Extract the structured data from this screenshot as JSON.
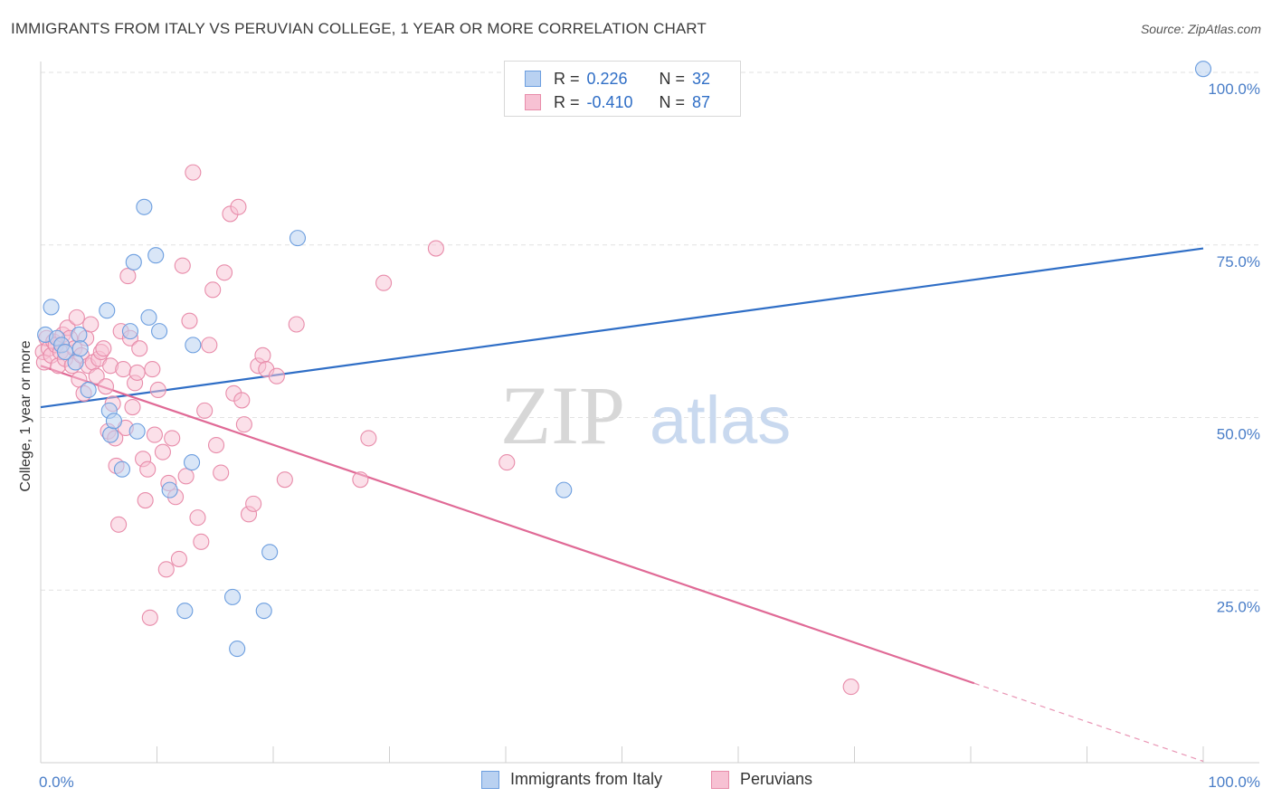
{
  "header": {
    "title": "IMMIGRANTS FROM ITALY VS PERUVIAN COLLEGE, 1 YEAR OR MORE CORRELATION CHART",
    "source": "Source: ZipAtlas.com"
  },
  "watermark": {
    "zip": "ZIP",
    "atlas": "atlas"
  },
  "legend": {
    "rows": [
      {
        "r_label": "R =",
        "r_value": "0.226",
        "n_label": "N =",
        "n_value": "32"
      },
      {
        "r_label": "R =",
        "r_value": "-0.410",
        "n_label": "N =",
        "n_value": "87"
      }
    ]
  },
  "bottom_legend": {
    "items": [
      {
        "label": "Immigrants from Italy"
      },
      {
        "label": "Peruvians"
      }
    ]
  },
  "colors": {
    "italy_fill": "#b9d1f1",
    "italy_stroke": "#6c9edf",
    "italy_line": "#2f6ec6",
    "peru_fill": "#f7c1d3",
    "peru_stroke": "#e88caa",
    "peru_line": "#e06a96",
    "tick_text": "#4a7ec8",
    "grid": "#e2e2e2"
  },
  "chart_data": {
    "type": "scatter",
    "title": "IMMIGRANTS FROM ITALY VS PERUVIAN COLLEGE, 1 YEAR OR MORE CORRELATION CHART",
    "xlabel": "",
    "ylabel": "College, 1 year or more",
    "xlim": [
      0,
      100
    ],
    "ylim": [
      0,
      100
    ],
    "x_tick_labels": [
      "0.0%",
      "100.0%"
    ],
    "y_tick_labels": [
      "25.0%",
      "50.0%",
      "75.0%",
      "100.0%"
    ],
    "y_ticks": [
      25,
      50,
      75,
      100
    ],
    "grid": true,
    "legend_position": "top-center",
    "series": [
      {
        "name": "Immigrants from Italy",
        "r": 0.226,
        "n": 32,
        "trend": {
          "x": [
            0,
            100
          ],
          "y": [
            51.5,
            74.5
          ]
        },
        "points": [
          [
            0.4,
            62.0
          ],
          [
            0.9,
            66.0
          ],
          [
            1.4,
            61.5
          ],
          [
            1.8,
            60.5
          ],
          [
            2.1,
            59.5
          ],
          [
            3.0,
            58.0
          ],
          [
            3.3,
            62.0
          ],
          [
            3.4,
            60.0
          ],
          [
            4.1,
            54.0
          ],
          [
            5.7,
            65.5
          ],
          [
            5.9,
            51.0
          ],
          [
            6.0,
            47.5
          ],
          [
            6.3,
            49.5
          ],
          [
            7.0,
            42.5
          ],
          [
            7.7,
            62.5
          ],
          [
            8.0,
            72.5
          ],
          [
            8.3,
            48.0
          ],
          [
            8.9,
            80.5
          ],
          [
            9.3,
            64.5
          ],
          [
            9.9,
            73.5
          ],
          [
            10.2,
            62.5
          ],
          [
            11.1,
            39.5
          ],
          [
            12.4,
            22.0
          ],
          [
            13.0,
            43.5
          ],
          [
            13.1,
            60.5
          ],
          [
            16.5,
            24.0
          ],
          [
            16.9,
            16.5
          ],
          [
            19.2,
            22.0
          ],
          [
            19.7,
            30.5
          ],
          [
            22.1,
            76.0
          ],
          [
            45.0,
            39.5
          ],
          [
            100.0,
            100.5
          ]
        ]
      },
      {
        "name": "Peruvians",
        "r": -0.41,
        "n": 87,
        "trend": {
          "x": [
            0,
            80.3
          ],
          "y": [
            57.5,
            11.5
          ],
          "dashed_x": [
            80.3,
            100
          ],
          "dashed_y": [
            11.5,
            0.2
          ]
        },
        "points": [
          [
            0.2,
            59.5
          ],
          [
            0.3,
            58.0
          ],
          [
            0.5,
            61.5
          ],
          [
            0.7,
            60.0
          ],
          [
            0.9,
            59.0
          ],
          [
            1.1,
            61.0
          ],
          [
            1.3,
            60.5
          ],
          [
            1.5,
            57.5
          ],
          [
            1.7,
            59.5
          ],
          [
            1.9,
            62.0
          ],
          [
            2.1,
            58.5
          ],
          [
            2.3,
            63.0
          ],
          [
            2.5,
            61.5
          ],
          [
            2.7,
            57.5
          ],
          [
            2.9,
            60.0
          ],
          [
            3.1,
            64.5
          ],
          [
            3.3,
            55.5
          ],
          [
            3.5,
            59.0
          ],
          [
            3.7,
            53.5
          ],
          [
            3.9,
            61.5
          ],
          [
            4.1,
            57.5
          ],
          [
            4.3,
            63.5
          ],
          [
            4.5,
            58.0
          ],
          [
            4.8,
            56.0
          ],
          [
            5.0,
            58.5
          ],
          [
            5.2,
            59.5
          ],
          [
            5.4,
            60.0
          ],
          [
            5.6,
            54.5
          ],
          [
            5.8,
            48.0
          ],
          [
            6.0,
            57.5
          ],
          [
            6.2,
            52.0
          ],
          [
            6.4,
            47.0
          ],
          [
            6.5,
            43.0
          ],
          [
            6.7,
            34.5
          ],
          [
            6.9,
            62.5
          ],
          [
            7.1,
            57.0
          ],
          [
            7.3,
            48.5
          ],
          [
            7.5,
            70.5
          ],
          [
            7.7,
            61.5
          ],
          [
            7.9,
            51.5
          ],
          [
            8.1,
            55.0
          ],
          [
            8.3,
            56.5
          ],
          [
            8.5,
            60.0
          ],
          [
            8.8,
            44.0
          ],
          [
            9.0,
            38.0
          ],
          [
            9.2,
            42.5
          ],
          [
            9.4,
            21.0
          ],
          [
            9.6,
            57.0
          ],
          [
            9.8,
            47.5
          ],
          [
            10.1,
            54.0
          ],
          [
            10.5,
            45.0
          ],
          [
            10.8,
            28.0
          ],
          [
            11.0,
            40.5
          ],
          [
            11.3,
            47.0
          ],
          [
            11.6,
            38.5
          ],
          [
            11.9,
            29.5
          ],
          [
            12.2,
            72.0
          ],
          [
            12.5,
            41.5
          ],
          [
            12.8,
            64.0
          ],
          [
            13.1,
            85.5
          ],
          [
            13.5,
            35.5
          ],
          [
            13.8,
            32.0
          ],
          [
            14.1,
            51.0
          ],
          [
            14.5,
            60.5
          ],
          [
            14.8,
            68.5
          ],
          [
            15.1,
            46.0
          ],
          [
            15.5,
            42.0
          ],
          [
            15.8,
            71.0
          ],
          [
            16.3,
            79.5
          ],
          [
            16.6,
            53.5
          ],
          [
            17.0,
            80.5
          ],
          [
            17.3,
            52.5
          ],
          [
            17.5,
            49.0
          ],
          [
            17.9,
            36.0
          ],
          [
            18.3,
            37.5
          ],
          [
            18.7,
            57.5
          ],
          [
            19.1,
            59.0
          ],
          [
            19.4,
            57.0
          ],
          [
            20.3,
            56.0
          ],
          [
            21.0,
            41.0
          ],
          [
            22.0,
            63.5
          ],
          [
            27.5,
            41.0
          ],
          [
            28.2,
            47.0
          ],
          [
            29.5,
            69.5
          ],
          [
            34.0,
            74.5
          ],
          [
            40.1,
            43.5
          ],
          [
            69.7,
            11.0
          ]
        ]
      }
    ]
  }
}
